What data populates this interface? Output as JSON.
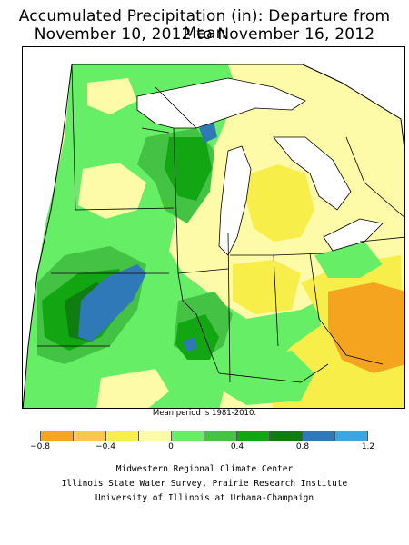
{
  "title": {
    "line1": "Accumulated Precipitation (in): Departure from Mean",
    "line2": "November 10, 2012 to November 16, 2012"
  },
  "note": "Mean period is 1981-2010.",
  "legend": {
    "bins": [
      {
        "color": "#f5a41f"
      },
      {
        "color": "#fbc74e"
      },
      {
        "color": "#f8ee4a"
      },
      {
        "color": "#fdfaa8"
      },
      {
        "color": "#66ee66"
      },
      {
        "color": "#44c244"
      },
      {
        "color": "#12a612"
      },
      {
        "color": "#0f7d0f"
      },
      {
        "color": "#2f79b9"
      },
      {
        "color": "#3aa6e2"
      }
    ],
    "ticks": [
      {
        "label": "−0.8",
        "value": -0.8
      },
      {
        "label": "−0.4",
        "value": -0.4
      },
      {
        "label": "0",
        "value": 0
      },
      {
        "label": "0.4",
        "value": 0.4
      },
      {
        "label": "0.8",
        "value": 0.8
      },
      {
        "label": "1.2",
        "value": 1.2
      }
    ]
  },
  "credits": {
    "line1": "Midwestern Regional Climate Center",
    "line2": "Illinois State Water Survey, Prairie Research Institute",
    "line3": "University of Illinois at Urbana-Champaign"
  },
  "map": {
    "region": "Upper Midwest",
    "colors": {
      "dry_strong": "#f5a41f",
      "dry": "#f8ee4a",
      "near_zero_dry": "#fdfaa8",
      "wet_light": "#66ee66",
      "wet": "#44c244",
      "wet_more": "#12a612",
      "wet_heavy": "#0f7d0f",
      "wettest": "#2f79b9",
      "lake": "#ffffff",
      "border": "#000000"
    }
  }
}
